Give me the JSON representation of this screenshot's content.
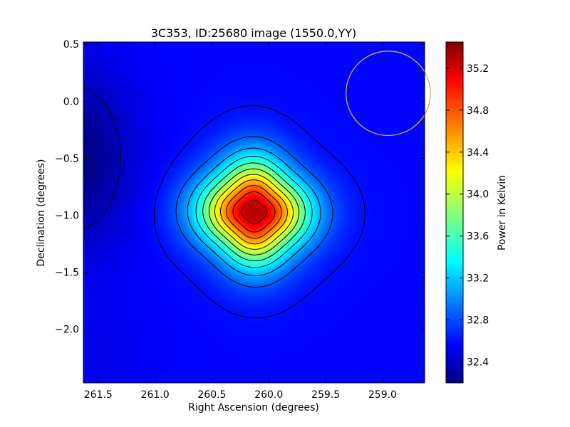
{
  "chart_data": {
    "type": "heatmap",
    "title": "3C353, ID:25680 image (1550.0,YY)",
    "xlabel": "Right Ascension (degrees)",
    "ylabel": "Declination (degrees)",
    "colorbar_label": "Power in Kelvin",
    "xlim": [
      261.63,
      258.63
    ],
    "ylim": [
      -2.47,
      0.52
    ],
    "x_reversed": true,
    "x_ticks": [
      261.5,
      261.0,
      260.5,
      260.0,
      259.5,
      259.0
    ],
    "x_tick_labels": [
      "261.5",
      "261.0",
      "260.5",
      "260.0",
      "259.5",
      "259.0"
    ],
    "y_ticks": [
      0.5,
      0.0,
      -0.5,
      -1.0,
      -1.5,
      -2.0
    ],
    "y_tick_labels": [
      "0.5",
      "0.0",
      "−0.5",
      "−1.0",
      "−1.5",
      "−2.0"
    ],
    "colorbar_range": [
      32.2,
      35.45
    ],
    "colorbar_ticks": [
      32.4,
      32.8,
      33.2,
      33.6,
      34.0,
      34.4,
      34.8,
      35.2
    ],
    "colorbar_tick_labels": [
      "32.4",
      "32.8",
      "33.2",
      "33.6",
      "34.0",
      "34.4",
      "34.8",
      "35.2"
    ],
    "colormap": "jet",
    "grid": false,
    "source": {
      "ra": 260.13,
      "dec": -0.97,
      "peak_kelvin": 35.3
    },
    "background_kelvin": 32.62,
    "contours": "black contour lines of power",
    "beam": {
      "ra": 258.95,
      "dec": 0.07,
      "radius_deg": 0.37,
      "color": "#c8b050"
    }
  }
}
